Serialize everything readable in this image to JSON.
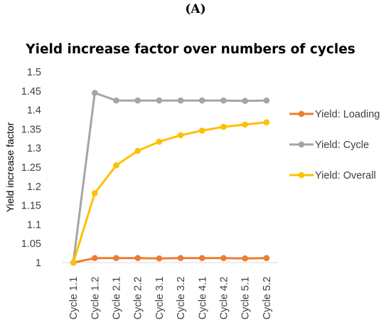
{
  "panel_label": "(A)",
  "chart_data": {
    "type": "line",
    "title": "Yield increase factor over numbers of cycles",
    "xlabel": "",
    "ylabel": "Yield increase factor",
    "ylim": [
      1,
      1.5
    ],
    "yticks": [
      "1",
      "1.05",
      "1.1",
      "1.15",
      "1.2",
      "1.25",
      "1.3",
      "1.35",
      "1.4",
      "1.45",
      "1.5"
    ],
    "categories": [
      "Cycle 1.1",
      "Cycle 1.2",
      "Cycle 2.1",
      "Cycle 2.2",
      "Cycle 3.1",
      "Cycle 3.2",
      "Cycle 4.1",
      "Cycle 4.2",
      "Cycle 5.1",
      "Cycle 5.2"
    ],
    "grid": false,
    "legend_position": "right",
    "series": [
      {
        "name": "Yield: Loading",
        "color": "#ED7D31",
        "values": [
          1.0,
          1.012,
          1.012,
          1.012,
          1.011,
          1.012,
          1.012,
          1.012,
          1.011,
          1.012
        ]
      },
      {
        "name": "Yield: Cycle",
        "color": "#A5A5A5",
        "values": [
          1.0,
          1.445,
          1.425,
          1.425,
          1.425,
          1.425,
          1.425,
          1.425,
          1.424,
          1.425
        ]
      },
      {
        "name": "Yield: Overall",
        "color": "#FFC000",
        "values": [
          1.0,
          1.182,
          1.255,
          1.293,
          1.317,
          1.334,
          1.346,
          1.356,
          1.362,
          1.368
        ]
      }
    ]
  }
}
